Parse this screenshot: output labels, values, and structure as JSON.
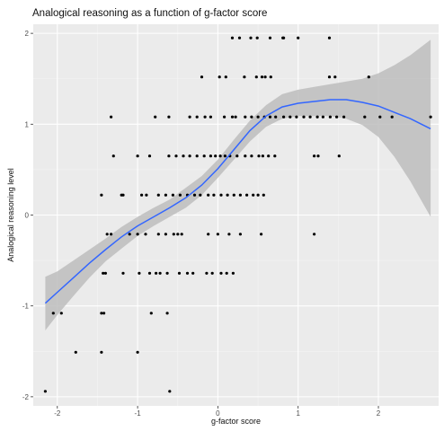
{
  "chart_data": {
    "type": "scatter",
    "title": "Analogical reasoning as a function of g-factor score",
    "xlabel": "g-factor score",
    "ylabel": "Analogical reasoning level",
    "xlim": [
      -2.3,
      2.75
    ],
    "ylim": [
      -2.1,
      2.1
    ],
    "x_ticks": [
      -2,
      -1,
      0,
      1,
      2
    ],
    "y_ticks": [
      -2,
      -1,
      0,
      1,
      2
    ],
    "x_tick_labels": [
      "-2",
      "-1",
      "0",
      "1",
      "2"
    ],
    "y_tick_labels": [
      "-2",
      "-1",
      "0",
      "1",
      "2"
    ],
    "grid": true,
    "colors": {
      "panel": "#ebebeb",
      "grid_major": "#ffffff",
      "grid_minor": "#f3f3f3",
      "points": "#000000",
      "smooth_line": "#3366ff",
      "confidence_band": "#bdbdbd"
    },
    "points": [
      [
        0.18,
        1.95
      ],
      [
        0.27,
        1.95
      ],
      [
        0.41,
        1.95
      ],
      [
        0.49,
        1.95
      ],
      [
        0.65,
        1.95
      ],
      [
        0.81,
        1.95
      ],
      [
        0.82,
        1.95
      ],
      [
        1.0,
        1.95
      ],
      [
        1.39,
        1.95
      ],
      [
        -0.2,
        1.52
      ],
      [
        0.02,
        1.52
      ],
      [
        0.1,
        1.52
      ],
      [
        0.33,
        1.52
      ],
      [
        0.48,
        1.52
      ],
      [
        0.55,
        1.52
      ],
      [
        0.59,
        1.52
      ],
      [
        0.66,
        1.52
      ],
      [
        1.39,
        1.52
      ],
      [
        1.46,
        1.52
      ],
      [
        1.88,
        1.52
      ],
      [
        -1.33,
        1.08
      ],
      [
        -0.78,
        1.08
      ],
      [
        -0.61,
        1.08
      ],
      [
        -0.35,
        1.08
      ],
      [
        -0.26,
        1.08
      ],
      [
        -0.16,
        1.08
      ],
      [
        -0.09,
        1.08
      ],
      [
        0.08,
        1.08
      ],
      [
        0.18,
        1.08
      ],
      [
        0.22,
        1.08
      ],
      [
        0.34,
        1.08
      ],
      [
        0.42,
        1.08
      ],
      [
        0.5,
        1.08
      ],
      [
        0.58,
        1.08
      ],
      [
        0.65,
        1.08
      ],
      [
        0.72,
        1.08
      ],
      [
        0.82,
        1.08
      ],
      [
        0.9,
        1.08
      ],
      [
        0.98,
        1.08
      ],
      [
        1.07,
        1.08
      ],
      [
        1.15,
        1.08
      ],
      [
        1.24,
        1.08
      ],
      [
        1.31,
        1.08
      ],
      [
        1.4,
        1.08
      ],
      [
        1.48,
        1.08
      ],
      [
        1.57,
        1.08
      ],
      [
        1.83,
        1.08
      ],
      [
        2.02,
        1.08
      ],
      [
        2.17,
        1.08
      ],
      [
        2.65,
        1.08
      ],
      [
        -1.3,
        0.65
      ],
      [
        -1.0,
        0.65
      ],
      [
        -0.85,
        0.65
      ],
      [
        -0.61,
        0.65
      ],
      [
        -0.52,
        0.65
      ],
      [
        -0.43,
        0.65
      ],
      [
        -0.35,
        0.65
      ],
      [
        -0.26,
        0.65
      ],
      [
        -0.17,
        0.65
      ],
      [
        -0.09,
        0.65
      ],
      [
        -0.03,
        0.65
      ],
      [
        0.03,
        0.65
      ],
      [
        0.09,
        0.65
      ],
      [
        0.15,
        0.65
      ],
      [
        0.24,
        0.65
      ],
      [
        0.34,
        0.65
      ],
      [
        0.42,
        0.65
      ],
      [
        0.51,
        0.65
      ],
      [
        0.56,
        0.65
      ],
      [
        0.63,
        0.65
      ],
      [
        0.71,
        0.65
      ],
      [
        1.2,
        0.65
      ],
      [
        1.25,
        0.65
      ],
      [
        1.51,
        0.65
      ],
      [
        -1.45,
        0.22
      ],
      [
        -1.2,
        0.22
      ],
      [
        -1.18,
        0.22
      ],
      [
        -0.95,
        0.22
      ],
      [
        -0.89,
        0.22
      ],
      [
        -0.74,
        0.22
      ],
      [
        -0.65,
        0.22
      ],
      [
        -0.56,
        0.22
      ],
      [
        -0.47,
        0.22
      ],
      [
        -0.38,
        0.22
      ],
      [
        -0.29,
        0.22
      ],
      [
        -0.22,
        0.22
      ],
      [
        -0.12,
        0.22
      ],
      [
        -0.05,
        0.22
      ],
      [
        0.04,
        0.22
      ],
      [
        0.12,
        0.22
      ],
      [
        0.2,
        0.22
      ],
      [
        0.28,
        0.22
      ],
      [
        0.36,
        0.22
      ],
      [
        0.44,
        0.22
      ],
      [
        0.5,
        0.22
      ],
      [
        0.57,
        0.22
      ],
      [
        -1.38,
        -0.21
      ],
      [
        -1.33,
        -0.21
      ],
      [
        -1.1,
        -0.21
      ],
      [
        -1.0,
        -0.21
      ],
      [
        -0.9,
        -0.21
      ],
      [
        -0.74,
        -0.21
      ],
      [
        -0.65,
        -0.21
      ],
      [
        -0.55,
        -0.21
      ],
      [
        -0.5,
        -0.21
      ],
      [
        -0.45,
        -0.21
      ],
      [
        -0.12,
        -0.21
      ],
      [
        0.0,
        -0.21
      ],
      [
        0.14,
        -0.21
      ],
      [
        0.28,
        -0.21
      ],
      [
        0.54,
        -0.21
      ],
      [
        1.2,
        -0.21
      ],
      [
        -1.43,
        -0.64
      ],
      [
        -1.4,
        -0.64
      ],
      [
        -1.18,
        -0.64
      ],
      [
        -0.98,
        -0.64
      ],
      [
        -0.85,
        -0.64
      ],
      [
        -0.77,
        -0.64
      ],
      [
        -0.72,
        -0.64
      ],
      [
        -0.63,
        -0.64
      ],
      [
        -0.48,
        -0.64
      ],
      [
        -0.38,
        -0.64
      ],
      [
        -0.31,
        -0.64
      ],
      [
        -0.14,
        -0.64
      ],
      [
        -0.07,
        -0.64
      ],
      [
        0.04,
        -0.64
      ],
      [
        0.11,
        -0.64
      ],
      [
        0.19,
        -0.64
      ],
      [
        -2.05,
        -1.08
      ],
      [
        -1.95,
        -1.08
      ],
      [
        -1.45,
        -1.08
      ],
      [
        -1.42,
        -1.08
      ],
      [
        -0.83,
        -1.08
      ],
      [
        -0.63,
        -1.08
      ],
      [
        -1.77,
        -1.51
      ],
      [
        -1.45,
        -1.51
      ],
      [
        -1.0,
        -1.51
      ],
      [
        -2.15,
        -1.94
      ],
      [
        -0.6,
        -1.94
      ]
    ],
    "smooth_line": [
      [
        -2.15,
        -0.97
      ],
      [
        -2.0,
        -0.85
      ],
      [
        -1.8,
        -0.69
      ],
      [
        -1.6,
        -0.53
      ],
      [
        -1.4,
        -0.38
      ],
      [
        -1.2,
        -0.24
      ],
      [
        -1.0,
        -0.12
      ],
      [
        -0.8,
        -0.02
      ],
      [
        -0.6,
        0.08
      ],
      [
        -0.4,
        0.19
      ],
      [
        -0.2,
        0.33
      ],
      [
        0.0,
        0.51
      ],
      [
        0.2,
        0.72
      ],
      [
        0.4,
        0.93
      ],
      [
        0.6,
        1.09
      ],
      [
        0.8,
        1.19
      ],
      [
        1.0,
        1.23
      ],
      [
        1.2,
        1.25
      ],
      [
        1.4,
        1.27
      ],
      [
        1.6,
        1.27
      ],
      [
        1.8,
        1.24
      ],
      [
        2.0,
        1.2
      ],
      [
        2.2,
        1.13
      ],
      [
        2.4,
        1.06
      ],
      [
        2.65,
        0.95
      ]
    ],
    "confidence_band": {
      "x": [
        -2.15,
        -2.0,
        -1.8,
        -1.6,
        -1.4,
        -1.2,
        -1.0,
        -0.8,
        -0.6,
        -0.4,
        -0.2,
        0.0,
        0.2,
        0.4,
        0.6,
        0.8,
        1.0,
        1.2,
        1.4,
        1.6,
        1.8,
        2.0,
        2.2,
        2.4,
        2.65
      ],
      "upper": [
        -0.68,
        -0.62,
        -0.5,
        -0.38,
        -0.26,
        -0.13,
        -0.02,
        0.08,
        0.17,
        0.3,
        0.43,
        0.61,
        0.83,
        1.04,
        1.21,
        1.33,
        1.38,
        1.41,
        1.44,
        1.47,
        1.5,
        1.56,
        1.65,
        1.76,
        1.93
      ],
      "lower": [
        -1.27,
        -1.1,
        -0.89,
        -0.69,
        -0.51,
        -0.37,
        -0.23,
        -0.12,
        -0.02,
        0.08,
        0.22,
        0.41,
        0.61,
        0.81,
        0.97,
        1.06,
        1.09,
        1.09,
        1.09,
        1.06,
        0.99,
        0.86,
        0.64,
        0.37,
        -0.02
      ]
    }
  }
}
